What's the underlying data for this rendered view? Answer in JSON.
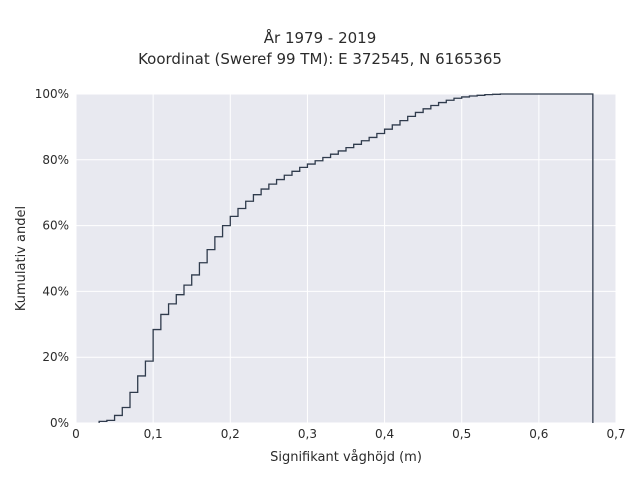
{
  "chart_data": {
    "type": "line",
    "subtype": "empirical-cdf-step",
    "title": "År 1979 - 2019",
    "subtitle": "Koordinat (Sweref 99 TM): E 372545, N 6165365",
    "xlabel": "Signifikant våghöjd (m)",
    "ylabel": "Kumulativ andel",
    "xlim": [
      0,
      0.7
    ],
    "ylim": [
      0,
      1
    ],
    "x_ticks": [
      0,
      0.1,
      0.2,
      0.3,
      0.4,
      0.5,
      0.6,
      0.7
    ],
    "x_tick_labels": [
      "0",
      "0,1",
      "0,2",
      "0,3",
      "0,4",
      "0,5",
      "0,6",
      "0,7"
    ],
    "y_ticks": [
      0,
      0.2,
      0.4,
      0.6,
      0.8,
      1.0
    ],
    "y_tick_labels": [
      "0%",
      "20%",
      "40%",
      "60%",
      "80%",
      "100%"
    ],
    "grid": true,
    "background": "#e8e9f0",
    "grid_color": "#ffffff",
    "line_color": "#2f3b4c",
    "bin_edges": [
      0.03,
      0.04,
      0.05,
      0.06,
      0.07,
      0.08,
      0.09,
      0.1,
      0.11,
      0.12,
      0.13,
      0.14,
      0.15,
      0.16,
      0.17,
      0.18,
      0.19,
      0.2,
      0.21,
      0.22,
      0.23,
      0.24,
      0.25,
      0.26,
      0.27,
      0.28,
      0.29,
      0.3,
      0.31,
      0.32,
      0.33,
      0.34,
      0.35,
      0.36,
      0.37,
      0.38,
      0.39,
      0.4,
      0.41,
      0.42,
      0.43,
      0.44,
      0.45,
      0.46,
      0.47,
      0.48,
      0.49,
      0.5,
      0.51,
      0.52,
      0.53,
      0.54,
      0.55,
      0.56,
      0.57,
      0.58,
      0.59,
      0.6,
      0.67
    ],
    "cumulative": [
      0.005,
      0.008,
      0.023,
      0.047,
      0.093,
      0.143,
      0.188,
      0.284,
      0.33,
      0.362,
      0.39,
      0.419,
      0.45,
      0.487,
      0.527,
      0.566,
      0.6,
      0.628,
      0.652,
      0.674,
      0.694,
      0.711,
      0.726,
      0.74,
      0.753,
      0.765,
      0.777,
      0.787,
      0.797,
      0.807,
      0.817,
      0.827,
      0.837,
      0.847,
      0.858,
      0.868,
      0.88,
      0.893,
      0.906,
      0.919,
      0.932,
      0.944,
      0.955,
      0.965,
      0.974,
      0.981,
      0.987,
      0.991,
      0.994,
      0.996,
      0.998,
      0.999,
      1.0,
      1.0,
      1.0,
      1.0,
      1.0,
      1.0
    ]
  }
}
